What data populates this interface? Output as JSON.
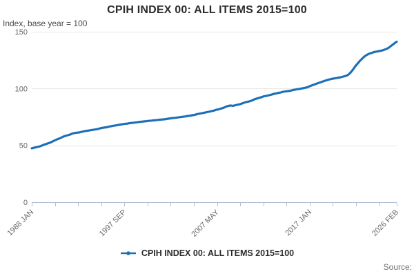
{
  "header": {
    "title": "CPIH INDEX 00: ALL ITEMS 2015=100",
    "subtitle": "Index, base year = 100"
  },
  "legend": {
    "label": "CPIH INDEX 00: ALL ITEMS 2015=100"
  },
  "source_label": "Source:",
  "colors": {
    "line": "#1d70b8",
    "grid": "#e6e6e6",
    "axis": "#b0bfd4",
    "title_text": "#2b2b2b",
    "tick_text": "#666666",
    "source_text": "#707070"
  },
  "chart_data": {
    "type": "line",
    "title": "CPIH INDEX 00: ALL ITEMS 2015=100",
    "xlabel": "",
    "ylabel": "Index, base year = 100",
    "ylim": [
      0,
      150
    ],
    "y_ticks": [
      0,
      50,
      100,
      150
    ],
    "grid": "horizontal",
    "legend_position": "bottom",
    "x_unit": "months since 1988 JAN",
    "x_range_months": [
      0,
      457
    ],
    "x_tick_labels": [
      "1988 JAN",
      "1997 SEP",
      "2007 MAY",
      "2017 JAN",
      "2026 FEB"
    ],
    "x_label_months": [
      0,
      116,
      232,
      348,
      457
    ],
    "minor_tick_months": [
      0,
      29,
      58,
      87,
      116,
      145,
      174,
      203,
      232,
      261,
      290,
      319,
      348,
      377,
      406,
      435,
      457
    ],
    "series": [
      {
        "name": "CPIH INDEX 00: ALL ITEMS 2015=100",
        "points": [
          [
            0,
            47.4
          ],
          [
            3,
            47.9
          ],
          [
            6,
            48.4
          ],
          [
            9,
            48.9
          ],
          [
            12,
            49.6
          ],
          [
            15,
            50.5
          ],
          [
            18,
            51.2
          ],
          [
            21,
            51.9
          ],
          [
            24,
            52.7
          ],
          [
            27,
            53.8
          ],
          [
            30,
            54.8
          ],
          [
            33,
            55.6
          ],
          [
            36,
            56.5
          ],
          [
            39,
            57.5
          ],
          [
            42,
            58.3
          ],
          [
            45,
            58.9
          ],
          [
            48,
            59.5
          ],
          [
            51,
            60.4
          ],
          [
            54,
            60.9
          ],
          [
            57,
            61.2
          ],
          [
            60,
            61.4
          ],
          [
            63,
            62.0
          ],
          [
            66,
            62.5
          ],
          [
            69,
            62.8
          ],
          [
            72,
            63.1
          ],
          [
            75,
            63.5
          ],
          [
            78,
            63.8
          ],
          [
            81,
            64.2
          ],
          [
            84,
            64.6
          ],
          [
            87,
            65.2
          ],
          [
            90,
            65.6
          ],
          [
            93,
            65.9
          ],
          [
            96,
            66.3
          ],
          [
            99,
            66.8
          ],
          [
            102,
            67.2
          ],
          [
            105,
            67.5
          ],
          [
            108,
            67.9
          ],
          [
            111,
            68.3
          ],
          [
            114,
            68.7
          ],
          [
            117,
            69.0
          ],
          [
            120,
            69.2
          ],
          [
            123,
            69.6
          ],
          [
            126,
            69.8
          ],
          [
            129,
            70.1
          ],
          [
            132,
            70.3
          ],
          [
            135,
            70.7
          ],
          [
            138,
            70.9
          ],
          [
            141,
            71.1
          ],
          [
            144,
            71.3
          ],
          [
            147,
            71.6
          ],
          [
            150,
            71.8
          ],
          [
            153,
            72.0
          ],
          [
            156,
            72.2
          ],
          [
            159,
            72.5
          ],
          [
            162,
            72.7
          ],
          [
            165,
            72.9
          ],
          [
            168,
            73.1
          ],
          [
            171,
            73.5
          ],
          [
            174,
            73.8
          ],
          [
            177,
            74.1
          ],
          [
            180,
            74.3
          ],
          [
            183,
            74.6
          ],
          [
            186,
            74.9
          ],
          [
            189,
            75.2
          ],
          [
            192,
            75.4
          ],
          [
            195,
            75.8
          ],
          [
            198,
            76.1
          ],
          [
            201,
            76.5
          ],
          [
            204,
            76.9
          ],
          [
            207,
            77.5
          ],
          [
            210,
            77.9
          ],
          [
            213,
            78.3
          ],
          [
            216,
            78.7
          ],
          [
            219,
            79.2
          ],
          [
            222,
            79.6
          ],
          [
            225,
            80.1
          ],
          [
            228,
            80.6
          ],
          [
            231,
            81.3
          ],
          [
            234,
            81.7
          ],
          [
            237,
            82.4
          ],
          [
            240,
            83.0
          ],
          [
            243,
            84.0
          ],
          [
            246,
            84.7
          ],
          [
            249,
            85.1
          ],
          [
            252,
            84.8
          ],
          [
            255,
            85.3
          ],
          [
            258,
            85.8
          ],
          [
            261,
            86.3
          ],
          [
            264,
            87.0
          ],
          [
            267,
            87.9
          ],
          [
            270,
            88.3
          ],
          [
            273,
            88.8
          ],
          [
            276,
            89.6
          ],
          [
            279,
            90.6
          ],
          [
            282,
            91.2
          ],
          [
            285,
            91.9
          ],
          [
            288,
            92.5
          ],
          [
            291,
            93.3
          ],
          [
            294,
            93.6
          ],
          [
            297,
            94.1
          ],
          [
            300,
            94.6
          ],
          [
            303,
            95.3
          ],
          [
            306,
            95.7
          ],
          [
            309,
            96.2
          ],
          [
            312,
            96.6
          ],
          [
            315,
            97.2
          ],
          [
            318,
            97.5
          ],
          [
            321,
            97.8
          ],
          [
            324,
            98.1
          ],
          [
            327,
            98.7
          ],
          [
            330,
            99.1
          ],
          [
            333,
            99.5
          ],
          [
            336,
            99.8
          ],
          [
            339,
            100.2
          ],
          [
            342,
            100.6
          ],
          [
            345,
            101.2
          ],
          [
            348,
            102.0
          ],
          [
            351,
            102.9
          ],
          [
            354,
            103.6
          ],
          [
            357,
            104.4
          ],
          [
            360,
            105.1
          ],
          [
            363,
            105.9
          ],
          [
            366,
            106.6
          ],
          [
            369,
            107.3
          ],
          [
            372,
            107.9
          ],
          [
            375,
            108.4
          ],
          [
            378,
            108.8
          ],
          [
            381,
            109.2
          ],
          [
            384,
            109.6
          ],
          [
            387,
            110.0
          ],
          [
            390,
            110.5
          ],
          [
            393,
            111.1
          ],
          [
            396,
            112.0
          ],
          [
            399,
            114.0
          ],
          [
            402,
            116.5
          ],
          [
            405,
            119.5
          ],
          [
            408,
            122.0
          ],
          [
            411,
            124.5
          ],
          [
            414,
            126.5
          ],
          [
            417,
            128.5
          ],
          [
            420,
            129.8
          ],
          [
            423,
            130.8
          ],
          [
            426,
            131.5
          ],
          [
            429,
            132.2
          ],
          [
            432,
            132.6
          ],
          [
            435,
            133.0
          ],
          [
            438,
            133.4
          ],
          [
            441,
            134.0
          ],
          [
            444,
            134.8
          ],
          [
            447,
            136.0
          ],
          [
            450,
            137.6
          ],
          [
            453,
            139.2
          ],
          [
            456,
            140.8
          ],
          [
            457,
            141.2
          ]
        ]
      }
    ]
  }
}
